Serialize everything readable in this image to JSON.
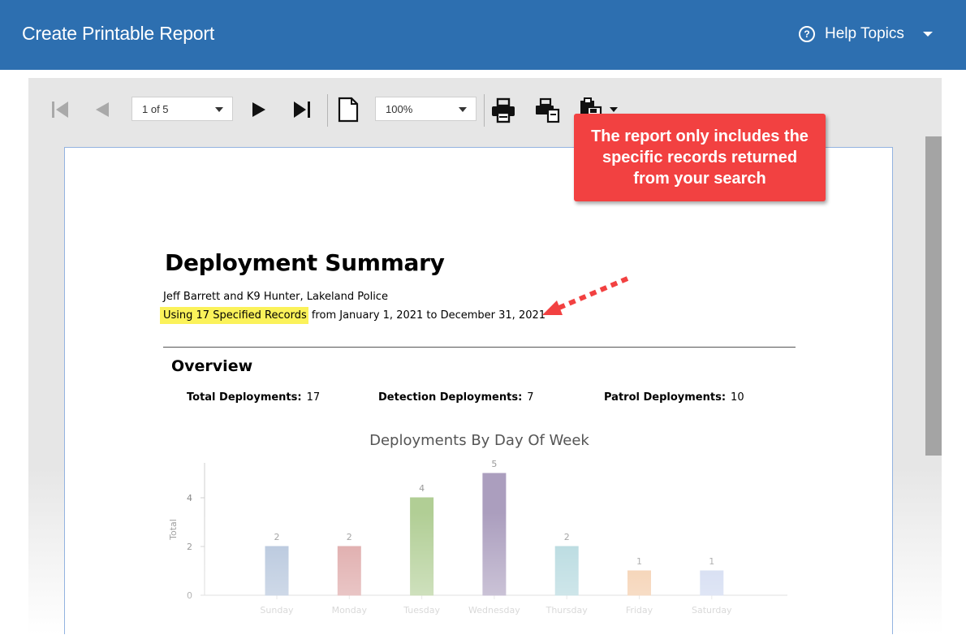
{
  "header": {
    "title": "Create Printable Report",
    "help_label": "Help Topics"
  },
  "toolbar": {
    "page_select": "1 of 5",
    "zoom_select": "100%"
  },
  "report": {
    "title": "Deployment Summary",
    "author_line": "Jeff Barrett and K9 Hunter, Lakeland Police",
    "records_highlight": "Using 17 Specified Records",
    "date_range": " from January 1, 2021 to December 31, 2021",
    "section": "Overview",
    "stats": [
      {
        "label": "Total Deployments:",
        "value": "17"
      },
      {
        "label": "Detection Deployments:",
        "value": "7"
      },
      {
        "label": "Patrol Deployments:",
        "value": "10"
      }
    ]
  },
  "callout": {
    "text": "The report only includes the specific records returned from your search"
  },
  "colors": {
    "header": "#2d6fb0",
    "callout": "#f24141",
    "highlight": "#fbf25a"
  },
  "chart_data": {
    "type": "bar",
    "title": "Deployments By Day Of Week",
    "ylabel": "Total",
    "xlabel": "",
    "categories": [
      "Sunday",
      "Monday",
      "Tuesday",
      "Wednesday",
      "Thursday",
      "Friday",
      "Saturday"
    ],
    "values": [
      2,
      2,
      4,
      5,
      2,
      1,
      1
    ],
    "colors": [
      "#a9bcd6",
      "#d99a9a",
      "#a9c98a",
      "#a394b8",
      "#a9d3da",
      "#f2c39a",
      "#c7d2ee"
    ],
    "ylim": [
      0,
      5
    ],
    "yticks": [
      0,
      2,
      4
    ],
    "grid": false
  }
}
